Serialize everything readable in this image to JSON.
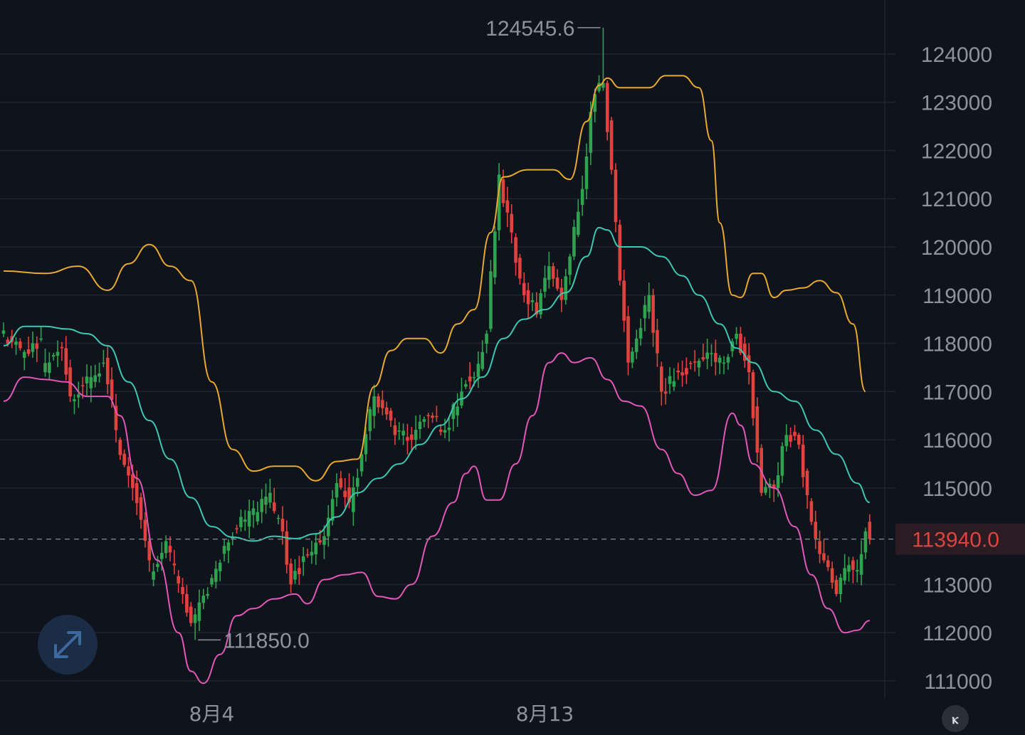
{
  "chart_data": {
    "type": "candlestick",
    "y_ticks": [
      "124000",
      "123000",
      "122000",
      "121000",
      "120000",
      "119000",
      "118000",
      "117000",
      "116000",
      "115000",
      "113000",
      "112000",
      "111000"
    ],
    "y_tick_values": [
      124000,
      123000,
      122000,
      121000,
      120000,
      119000,
      118000,
      117000,
      116000,
      115000,
      113000,
      112000,
      111000
    ],
    "ylim": [
      110630,
      125120
    ],
    "x_ticks": [
      {
        "label": "8月4",
        "index": 50
      },
      {
        "label": "8月13",
        "index": 130
      }
    ],
    "last_price": {
      "label": "113940.0",
      "value": 113940
    },
    "annotations": [
      {
        "text": "124545.6",
        "value": 124545.6,
        "index": 144
      },
      {
        "text": "111850.0",
        "value": 111850,
        "index": 46
      }
    ],
    "colors": {
      "up": "#2ea24f",
      "down": "#e0433d",
      "upper_band": "#e8a92e",
      "middle_band": "#3dc7b2",
      "lower_band": "#e357b8"
    },
    "candle_anchors": [
      [
        0,
        118200,
        117900
      ],
      [
        5,
        117700,
        118100
      ],
      [
        10,
        117400,
        117900
      ],
      [
        15,
        117900,
        116900
      ],
      [
        17,
        116800,
        117300
      ],
      [
        22,
        117200,
        117600
      ],
      [
        25,
        117700,
        116200
      ],
      [
        28,
        116000,
        115000
      ],
      [
        32,
        115100,
        113500
      ],
      [
        36,
        113100,
        113900
      ],
      [
        40,
        113800,
        112800
      ],
      [
        44,
        112800,
        112200
      ],
      [
        46,
        112200,
        112800
      ],
      [
        50,
        113000,
        113800
      ],
      [
        54,
        113700,
        114400
      ],
      [
        58,
        114300,
        114500
      ],
      [
        62,
        114500,
        114900
      ],
      [
        65,
        114700,
        114100
      ],
      [
        68,
        114100,
        113000
      ],
      [
        70,
        113100,
        113600
      ],
      [
        74,
        113600,
        114000
      ],
      [
        78,
        114000,
        115100
      ],
      [
        81,
        115200,
        114700
      ],
      [
        84,
        114500,
        115700
      ],
      [
        87,
        115700,
        116900
      ],
      [
        90,
        116900,
        116400
      ],
      [
        94,
        116300,
        116000
      ],
      [
        99,
        116000,
        116500
      ],
      [
        103,
        116500,
        116200
      ],
      [
        107,
        116200,
        117000
      ],
      [
        111,
        117100,
        117300
      ],
      [
        114,
        117300,
        118200
      ],
      [
        117,
        118300,
        121500
      ],
      [
        120,
        121400,
        120300
      ],
      [
        123,
        120200,
        119000
      ],
      [
        126,
        119100,
        118600
      ],
      [
        129,
        118600,
        119600
      ],
      [
        132,
        119600,
        118900
      ],
      [
        135,
        118900,
        119800
      ],
      [
        137,
        119800,
        121200
      ],
      [
        140,
        121200,
        122800
      ],
      [
        142,
        122800,
        123400
      ],
      [
        144,
        123300,
        123400
      ],
      [
        145,
        123400,
        121600
      ],
      [
        147,
        121600,
        119300
      ],
      [
        149,
        119300,
        117600
      ],
      [
        151,
        117600,
        118100
      ],
      [
        153,
        118100,
        119000
      ],
      [
        156,
        119000,
        117000
      ],
      [
        159,
        117000,
        117400
      ],
      [
        163,
        117400,
        117600
      ],
      [
        167,
        117500,
        117800
      ],
      [
        171,
        117800,
        117600
      ],
      [
        174,
        117600,
        118200
      ],
      [
        177,
        118200,
        117400
      ],
      [
        180,
        117400,
        114900
      ],
      [
        183,
        114900,
        115000
      ],
      [
        186,
        115000,
        116100
      ],
      [
        189,
        116100,
        115900
      ],
      [
        192,
        115900,
        114300
      ],
      [
        195,
        114300,
        113500
      ],
      [
        198,
        113500,
        112800
      ],
      [
        201,
        112800,
        113400
      ],
      [
        204,
        113500,
        113300
      ],
      [
        206,
        113200,
        114100
      ],
      [
        208,
        114300,
        113940
      ]
    ],
    "upper_band_anchors": [
      [
        0,
        119500
      ],
      [
        10,
        119450
      ],
      [
        18,
        119600
      ],
      [
        25,
        119100
      ],
      [
        30,
        119650
      ],
      [
        35,
        120050
      ],
      [
        40,
        119600
      ],
      [
        45,
        119300
      ],
      [
        50,
        117200
      ],
      [
        55,
        115800
      ],
      [
        60,
        115350
      ],
      [
        65,
        115450
      ],
      [
        70,
        115450
      ],
      [
        75,
        115150
      ],
      [
        80,
        115550
      ],
      [
        85,
        115600
      ],
      [
        89,
        117100
      ],
      [
        93,
        117850
      ],
      [
        97,
        118100
      ],
      [
        101,
        118100
      ],
      [
        105,
        117800
      ],
      [
        109,
        118400
      ],
      [
        113,
        118700
      ],
      [
        117,
        120300
      ],
      [
        120,
        121450
      ],
      [
        126,
        121600
      ],
      [
        132,
        121600
      ],
      [
        136,
        121400
      ],
      [
        140,
        122600
      ],
      [
        143,
        123350
      ],
      [
        145,
        123500
      ],
      [
        148,
        123300
      ],
      [
        155,
        123300
      ],
      [
        159,
        123550
      ],
      [
        163,
        123550
      ],
      [
        167,
        123300
      ],
      [
        170,
        122200
      ],
      [
        172,
        120500
      ],
      [
        175,
        119000
      ],
      [
        177,
        118950
      ],
      [
        180,
        119450
      ],
      [
        182,
        119450
      ],
      [
        185,
        118950
      ],
      [
        188,
        119100
      ],
      [
        192,
        119150
      ],
      [
        196,
        119300
      ],
      [
        200,
        119050
      ],
      [
        204,
        118400
      ],
      [
        207,
        117000
      ]
    ],
    "middle_band_anchors": [
      [
        0,
        117950
      ],
      [
        5,
        118350
      ],
      [
        10,
        118350
      ],
      [
        15,
        118300
      ],
      [
        20,
        118200
      ],
      [
        25,
        117950
      ],
      [
        30,
        117200
      ],
      [
        35,
        116400
      ],
      [
        40,
        115600
      ],
      [
        45,
        114800
      ],
      [
        50,
        114200
      ],
      [
        55,
        113980
      ],
      [
        60,
        113900
      ],
      [
        65,
        114000
      ],
      [
        70,
        113950
      ],
      [
        75,
        114050
      ],
      [
        80,
        114400
      ],
      [
        85,
        114900
      ],
      [
        90,
        115200
      ],
      [
        95,
        115500
      ],
      [
        100,
        115900
      ],
      [
        105,
        116300
      ],
      [
        110,
        116850
      ],
      [
        115,
        117300
      ],
      [
        120,
        118100
      ],
      [
        125,
        118500
      ],
      [
        130,
        118700
      ],
      [
        135,
        119050
      ],
      [
        140,
        119800
      ],
      [
        143,
        120400
      ],
      [
        145,
        120350
      ],
      [
        148,
        120000
      ],
      [
        153,
        120000
      ],
      [
        158,
        119800
      ],
      [
        163,
        119400
      ],
      [
        167,
        119000
      ],
      [
        172,
        118400
      ],
      [
        176,
        117900
      ],
      [
        180,
        117600
      ],
      [
        185,
        117000
      ],
      [
        190,
        116800
      ],
      [
        195,
        116200
      ],
      [
        200,
        115700
      ],
      [
        205,
        115100
      ],
      [
        208,
        114700
      ]
    ],
    "lower_band_anchors": [
      [
        0,
        116800
      ],
      [
        5,
        117300
      ],
      [
        10,
        117250
      ],
      [
        15,
        117200
      ],
      [
        20,
        116900
      ],
      [
        25,
        116900
      ],
      [
        28,
        116500
      ],
      [
        32,
        115200
      ],
      [
        37,
        113500
      ],
      [
        42,
        112000
      ],
      [
        45,
        111200
      ],
      [
        48,
        110950
      ],
      [
        52,
        111550
      ],
      [
        56,
        112350
      ],
      [
        60,
        112500
      ],
      [
        65,
        112700
      ],
      [
        70,
        112800
      ],
      [
        73,
        112600
      ],
      [
        77,
        113100
      ],
      [
        82,
        113200
      ],
      [
        86,
        113250
      ],
      [
        90,
        112750
      ],
      [
        94,
        112700
      ],
      [
        98,
        113000
      ],
      [
        103,
        114000
      ],
      [
        108,
        114700
      ],
      [
        111,
        115300
      ],
      [
        113,
        115450
      ],
      [
        116,
        114750
      ],
      [
        119,
        114750
      ],
      [
        123,
        115500
      ],
      [
        127,
        116500
      ],
      [
        131,
        117600
      ],
      [
        134,
        117800
      ],
      [
        137,
        117600
      ],
      [
        141,
        117700
      ],
      [
        145,
        117250
      ],
      [
        149,
        116800
      ],
      [
        153,
        116700
      ],
      [
        158,
        115800
      ],
      [
        162,
        115300
      ],
      [
        166,
        114850
      ],
      [
        170,
        114950
      ],
      [
        175,
        116550
      ],
      [
        177,
        116300
      ],
      [
        180,
        115500
      ],
      [
        185,
        115000
      ],
      [
        190,
        114200
      ],
      [
        194,
        113200
      ],
      [
        198,
        112500
      ],
      [
        202,
        112000
      ],
      [
        205,
        112050
      ],
      [
        208,
        112250
      ]
    ]
  }
}
